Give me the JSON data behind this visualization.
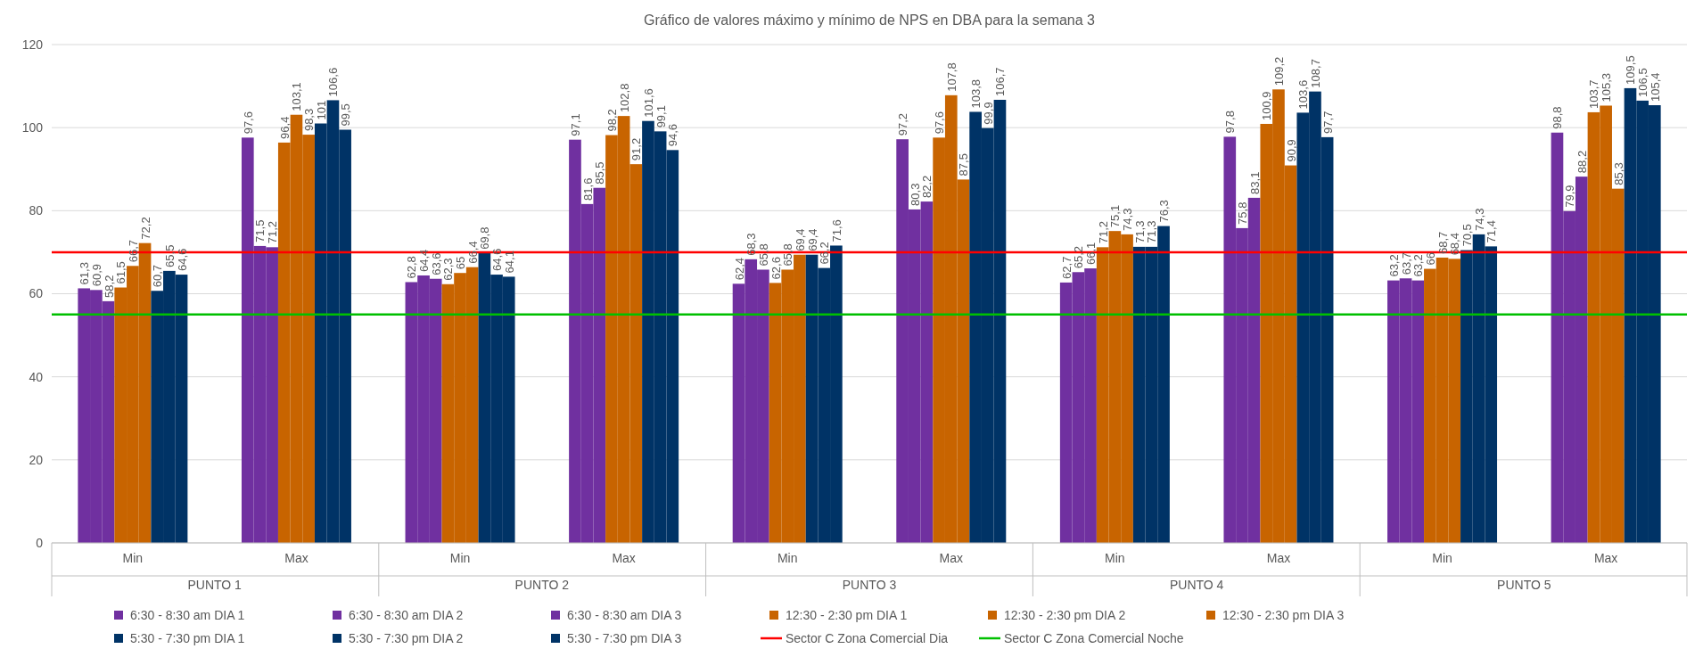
{
  "chart_data": {
    "type": "bar",
    "title": "Gráfico de valores máximo y mínimo de NPS en DBA para la semana 3",
    "categories": [
      "Min",
      "Max",
      "Min",
      "Max",
      "Min",
      "Max",
      "Min",
      "Max",
      "Min",
      "Max"
    ],
    "annotations": [
      "PUNTO 1",
      "PUNTO 2",
      "PUNTO 3",
      "PUNTO 4",
      "PUNTO 5"
    ],
    "ylim": [
      0,
      120
    ],
    "yticks": [
      0,
      20,
      40,
      60,
      80,
      100,
      120
    ],
    "grid": "y",
    "legend": "bottom",
    "series": [
      {
        "name": "6:30 - 8:30 am DIA 1",
        "color": "#7030a0",
        "values": [
          61.3,
          97.6,
          62.8,
          97.1,
          62.4,
          97.2,
          62.7,
          97.8,
          63.2,
          98.8
        ],
        "value_labels": [
          "61,3",
          "97,6",
          "62,8",
          "97,1",
          "62,4",
          "97,2",
          "62,7",
          "97,8",
          "63,2",
          "98,8"
        ]
      },
      {
        "name": "6:30 - 8:30 am DIA 2",
        "color": "#7030a0",
        "values": [
          60.9,
          71.5,
          64.4,
          81.6,
          68.3,
          80.3,
          65.2,
          75.8,
          63.7,
          79.9
        ],
        "value_labels": [
          "60,9",
          "71,5",
          "64,4",
          "81,6",
          "68,3",
          "80,3",
          "65,2",
          "75,8",
          "63,7",
          "79,9"
        ]
      },
      {
        "name": "6:30 - 8:30 am DIA 3",
        "color": "#7030a0",
        "values": [
          58.2,
          71.2,
          63.6,
          85.5,
          65.8,
          82.2,
          66.1,
          83.1,
          63.2,
          88.2
        ],
        "value_labels": [
          "58,2",
          "71,2",
          "63,6",
          "85,5",
          "65,8",
          "82,2",
          "66,1",
          "83,1",
          "63,2",
          "88,2"
        ]
      },
      {
        "name": "12:30 - 2:30 pm DIA 1",
        "color": "#c86400",
        "values": [
          61.5,
          96.4,
          62.3,
          98.2,
          62.6,
          97.6,
          71.2,
          100.9,
          66,
          103.7
        ],
        "value_labels": [
          "61,5",
          "96,4",
          "62,3",
          "98,2",
          "62,6",
          "97,6",
          "71,2",
          "100,9",
          "66",
          "103,7"
        ]
      },
      {
        "name": "12:30 - 2:30 pm DIA 2",
        "color": "#c86400",
        "values": [
          66.7,
          103.1,
          65,
          102.8,
          65.8,
          107.8,
          75.1,
          109.2,
          68.7,
          105.3
        ],
        "value_labels": [
          "66,7",
          "103,1",
          "65",
          "102,8",
          "65,8",
          "107,8",
          "75,1",
          "109,2",
          "68,7",
          "105,3"
        ]
      },
      {
        "name": "12:30 - 2:30 pm DIA 3",
        "color": "#c86400",
        "values": [
          72.2,
          98.3,
          66.4,
          91.2,
          69.4,
          87.5,
          74.3,
          90.9,
          68.4,
          85.3
        ],
        "value_labels": [
          "72,2",
          "98,3",
          "66,4",
          "91,2",
          "69,4",
          "87,5",
          "74,3",
          "90,9",
          "68,4",
          "85,3"
        ]
      },
      {
        "name": "5:30 - 7:30 pm DIA 1",
        "color": "#003366",
        "values": [
          60.7,
          101,
          69.8,
          101.6,
          69.4,
          103.8,
          71.3,
          103.6,
          70.5,
          109.5
        ],
        "value_labels": [
          "60,7",
          "101",
          "69,8",
          "101,6",
          "69,4",
          "103,8",
          "71,3",
          "103,6",
          "70,5",
          "109,5"
        ]
      },
      {
        "name": "5:30 - 7:30 pm DIA 2",
        "color": "#003366",
        "values": [
          65.5,
          106.6,
          64.6,
          99.1,
          66.2,
          99.9,
          71.3,
          108.7,
          74.3,
          106.5
        ],
        "value_labels": [
          "65,5",
          "106,6",
          "64,6",
          "99,1",
          "66,2",
          "99,9",
          "71,3",
          "108,7",
          "74,3",
          "106,5"
        ]
      },
      {
        "name": "5:30 - 7:30 pm DIA 3",
        "color": "#003366",
        "values": [
          64.6,
          99.5,
          64.1,
          94.6,
          71.6,
          106.7,
          76.3,
          97.7,
          71.4,
          105.4
        ],
        "value_labels": [
          "64,6",
          "99,5",
          "64,1",
          "94,6",
          "71,6",
          "106,7",
          "76,3",
          "97,7",
          "71,4",
          "105,4"
        ]
      }
    ],
    "ref_lines": [
      {
        "axis": "y",
        "value": 70,
        "label": "Sector C Zona Comercial Dia",
        "color": "#ff0000"
      },
      {
        "axis": "y",
        "value": 55,
        "label": "Sector C Zona Comercial Noche",
        "color": "#00c000"
      }
    ]
  }
}
